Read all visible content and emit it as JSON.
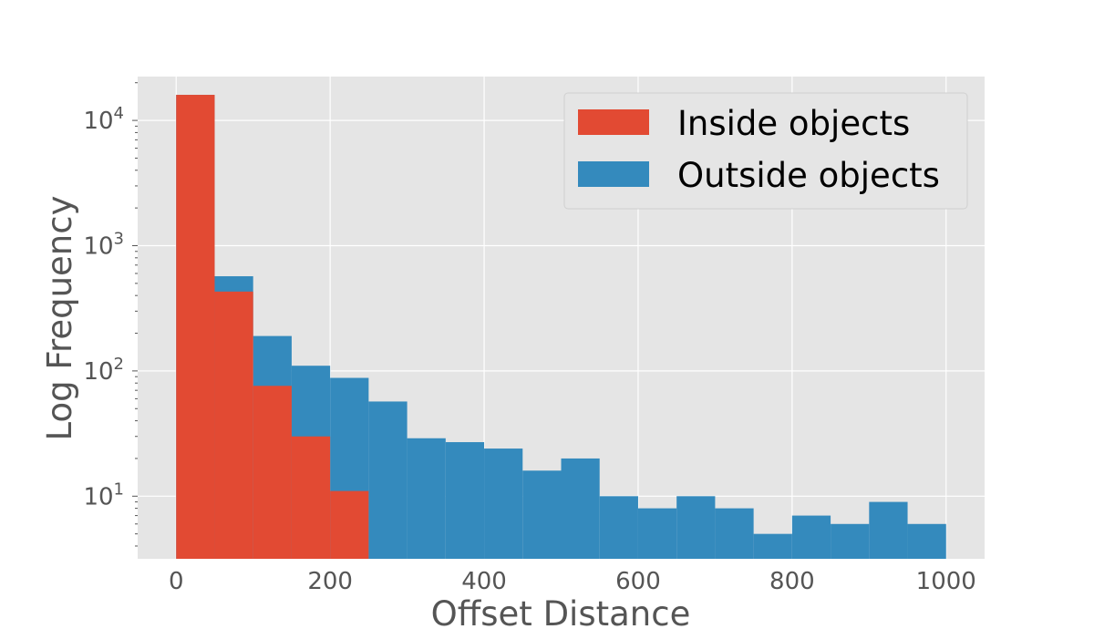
{
  "chart_data": {
    "type": "bar",
    "subtype": "stacked histogram",
    "xlabel": "Offset Distance",
    "ylabel": "Log Frequency",
    "yscale": "log",
    "xlim": [
      -50,
      1050
    ],
    "ylim_log10": [
      0.5,
      4.35
    ],
    "grid": true,
    "legend_position": "top-right",
    "bin_edges": [
      0,
      50,
      100,
      150,
      200,
      250,
      300,
      350,
      400,
      450,
      500,
      550,
      600,
      650,
      700,
      750,
      800,
      850,
      900,
      950,
      1000
    ],
    "x_ticks": [
      "0",
      "200",
      "400",
      "600",
      "800",
      "1000"
    ],
    "y_ticks": [
      {
        "value": 10,
        "base": "10",
        "exp": "1"
      },
      {
        "value": 100,
        "base": "10",
        "exp": "2"
      },
      {
        "value": 1000,
        "base": "10",
        "exp": "3"
      },
      {
        "value": 10000,
        "base": "10",
        "exp": "4"
      }
    ],
    "series": [
      {
        "name": "Inside objects",
        "color": "#E24A33",
        "values": [
          16000,
          430,
          76,
          30,
          11,
          0,
          0,
          0,
          0,
          0,
          0,
          0,
          0,
          0,
          0,
          0,
          0,
          0,
          0,
          0
        ]
      },
      {
        "name": "Outside objects",
        "color": "#348ABD",
        "cumulative_values": [
          16000,
          570,
          190,
          110,
          88,
          57,
          29,
          27,
          24,
          16,
          20,
          10,
          8,
          10,
          8,
          5,
          7,
          6,
          9,
          6
        ]
      }
    ]
  }
}
